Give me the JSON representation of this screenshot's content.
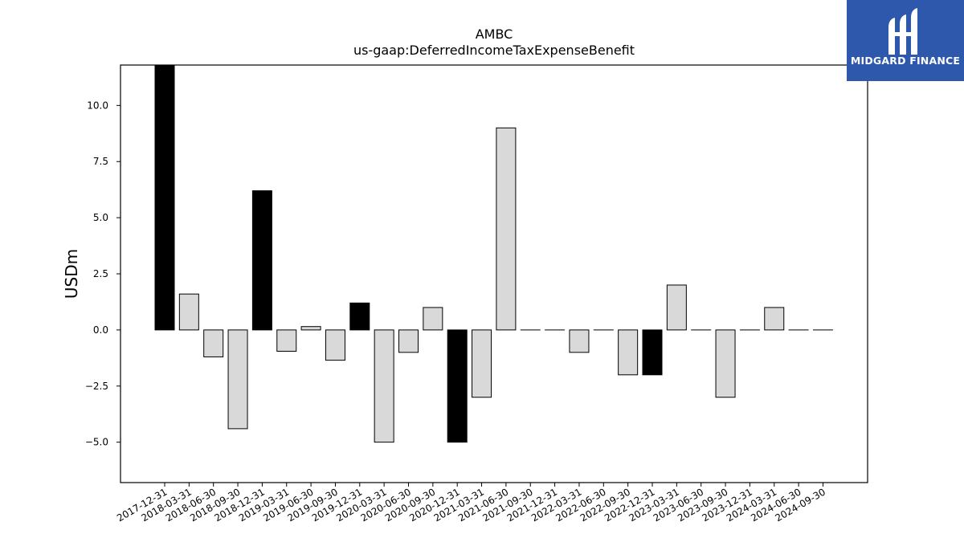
{
  "chart_data": {
    "type": "bar",
    "title": "AMBC",
    "subtitle": "us-gaap:DeferredIncomeTaxExpenseBenefit",
    "ylabel": "USDm",
    "xlabel": "",
    "ylim": [
      -6.8,
      11.8
    ],
    "yticks": [
      -5.0,
      -2.5,
      0.0,
      2.5,
      5.0,
      7.5,
      10.0
    ],
    "ytick_labels": [
      "−5.0",
      "−2.5",
      "0.0",
      "2.5",
      "5.0",
      "7.5",
      "10.0"
    ],
    "grid": false,
    "categories": [
      "2017-12-31",
      "2018-03-31",
      "2018-06-30",
      "2018-09-30",
      "2018-12-31",
      "2019-03-31",
      "2019-06-30",
      "2019-09-30",
      "2019-12-31",
      "2020-03-31",
      "2020-06-30",
      "2020-09-30",
      "2020-12-31",
      "2021-03-31",
      "2021-06-30",
      "2021-09-30",
      "2021-12-31",
      "2022-03-31",
      "2022-06-30",
      "2022-09-30",
      "2022-12-31",
      "2023-03-31",
      "2023-06-30",
      "2023-09-30",
      "2023-12-31",
      "2024-03-31",
      "2024-06-30",
      "2024-09-30"
    ],
    "values": [
      11.8,
      1.6,
      -1.2,
      -4.4,
      6.2,
      -0.95,
      0.15,
      -1.35,
      1.2,
      -5.0,
      -1.0,
      1.0,
      -5.0,
      -3.0,
      9.0,
      0.0,
      0.0,
      -1.0,
      0.0,
      -2.0,
      -2.0,
      2.0,
      0.0,
      -3.0,
      0.0,
      1.0,
      0.0,
      0.0
    ],
    "colors": [
      "#000000",
      "#d9d9d9",
      "#d9d9d9",
      "#d9d9d9",
      "#000000",
      "#d9d9d9",
      "#d9d9d9",
      "#d9d9d9",
      "#000000",
      "#d9d9d9",
      "#d9d9d9",
      "#d9d9d9",
      "#000000",
      "#d9d9d9",
      "#d9d9d9",
      "#d9d9d9",
      "#d9d9d9",
      "#d9d9d9",
      "#d9d9d9",
      "#d9d9d9",
      "#000000",
      "#d9d9d9",
      "#d9d9d9",
      "#d9d9d9",
      "#d9d9d9",
      "#d9d9d9",
      "#d9d9d9",
      "#d9d9d9"
    ],
    "edge_color": "#000000"
  },
  "logo": {
    "text": "MIDGARD FINANCE",
    "background": "#2d58ab"
  }
}
